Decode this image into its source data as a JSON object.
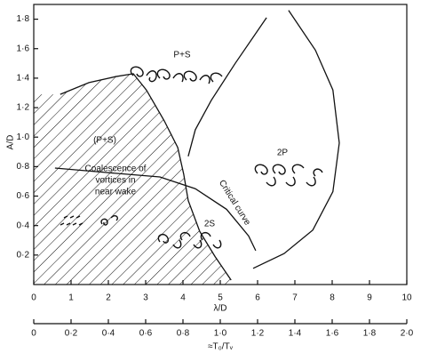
{
  "chart_data": {
    "type": "line",
    "xlabel": "λ/D",
    "ylabel": "A/D",
    "x2label": "≈T₀/Tᵥ",
    "xlim": [
      0,
      10
    ],
    "xticks": [
      0,
      1,
      2,
      3,
      4,
      5,
      6,
      7,
      8,
      9,
      10
    ],
    "ylim": [
      0,
      1.9
    ],
    "yticks": [
      {
        "value": 0.2,
        "label": "0·2"
      },
      {
        "value": 0.4,
        "label": "0·4"
      },
      {
        "value": 0.6,
        "label": "0·6"
      },
      {
        "value": 0.8,
        "label": "0·8"
      },
      {
        "value": 1.0,
        "label": "1·0"
      },
      {
        "value": 1.2,
        "label": "1·2"
      },
      {
        "value": 1.4,
        "label": "1·4"
      },
      {
        "value": 1.6,
        "label": "1·6"
      },
      {
        "value": 1.8,
        "label": "1·8"
      }
    ],
    "x2lim": [
      0,
      2
    ],
    "x2ticks": [
      0,
      {
        "value": 0.2,
        "label": "0·2"
      },
      {
        "value": 0.4,
        "label": "0·4"
      },
      {
        "value": 0.6,
        "label": "0·6"
      },
      {
        "value": 0.8,
        "label": "0·8"
      },
      {
        "value": 1.0,
        "label": "1·0"
      },
      {
        "value": 1.2,
        "label": "1·2"
      },
      {
        "value": 1.4,
        "label": "1·4"
      },
      {
        "value": 1.6,
        "label": "1·6"
      },
      {
        "value": 1.8,
        "label": "1·8"
      },
      {
        "value": 2.0,
        "label": "2·0"
      }
    ],
    "color": "#111111",
    "series": [
      {
        "x": [
          0.71,
          1.48,
          2.19,
          2.67,
          3.02,
          3.5,
          3.86,
          4.02,
          4.14,
          4.45,
          4.86,
          5.29
        ],
        "values": [
          1.29,
          1.37,
          1.41,
          1.43,
          1.32,
          1.11,
          0.93,
          0.75,
          0.57,
          0.36,
          0.19,
          0.03
        ],
        "hatched": true
      },
      {
        "x": [
          6.24,
          5.4,
          4.76,
          4.33,
          4.14
        ],
        "values": [
          1.81,
          1.5,
          1.25,
          1.05,
          0.87
        ]
      },
      {
        "x": [
          6.83,
          7.55,
          8.02,
          8.19,
          8.02,
          7.48,
          6.71,
          5.88
        ],
        "values": [
          1.86,
          1.59,
          1.32,
          0.96,
          0.63,
          0.37,
          0.21,
          0.11
        ]
      },
      {
        "x": [
          0.57,
          1.95,
          3.38,
          4.33,
          5.17,
          5.76,
          5.95
        ],
        "values": [
          0.79,
          0.76,
          0.73,
          0.65,
          0.51,
          0.33,
          0.23
        ]
      }
    ],
    "annotations": [
      "P+S",
      "(P+S)",
      "Coalescence of",
      "vortices in",
      "near wake",
      "2P",
      "2S",
      "Critical curve"
    ]
  }
}
